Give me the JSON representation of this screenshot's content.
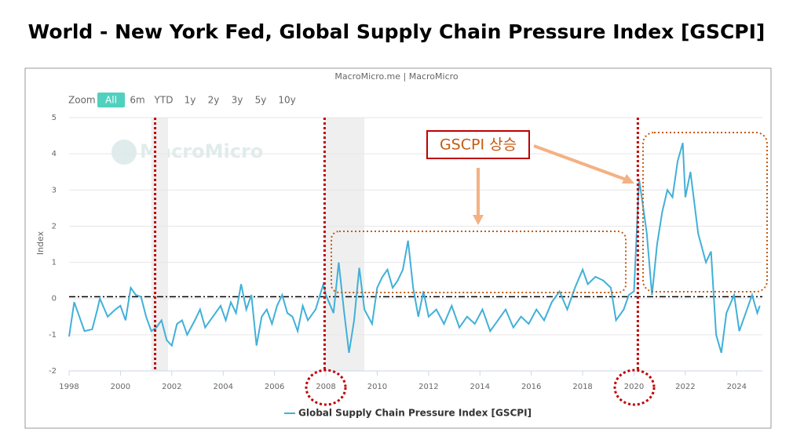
{
  "chart_data": {
    "type": "line",
    "title": "World - New York Fed, Global Supply Chain Pressure Index [GSCPI]",
    "source": "MacroMicro.me | MacroMicro",
    "watermark": "MacroMicro",
    "zoom_label": "Zoom",
    "zoom_buttons": [
      "All",
      "6m",
      "YTD",
      "1y",
      "2y",
      "3y",
      "5y",
      "10y"
    ],
    "y_label": "Index",
    "annotation": "GSCPI 상승",
    "xlim": [
      1998,
      2025
    ],
    "xticks": [
      1998,
      2000,
      2002,
      2004,
      2006,
      2008,
      2010,
      2012,
      2014,
      2016,
      2018,
      2020,
      2022,
      2024
    ],
    "ylim": [
      -2,
      5
    ],
    "yticks": [
      -2,
      -1,
      0,
      1,
      2,
      3,
      4,
      5
    ],
    "grid": true,
    "recessions": [
      [
        2001.2,
        2001.85
      ],
      [
        2007.95,
        2009.5
      ]
    ],
    "event_lines": [
      2001.35,
      2007.95,
      2020.15
    ],
    "reference_line": 0.05,
    "series": [
      {
        "name": "Global Supply Chain Pressure Index [GSCPI]",
        "color": "#41b0d8",
        "x": [
          1998.0,
          1998.2,
          1998.4,
          1998.6,
          1998.9,
          1999.1,
          1999.2,
          1999.5,
          1999.8,
          2000.0,
          2000.2,
          2000.4,
          2000.6,
          2000.8,
          2001.0,
          2001.2,
          2001.4,
          2001.6,
          2001.8,
          2002.0,
          2002.2,
          2002.4,
          2002.6,
          2002.9,
          2003.1,
          2003.3,
          2003.6,
          2003.9,
          2004.1,
          2004.3,
          2004.5,
          2004.7,
          2004.9,
          2005.1,
          2005.3,
          2005.5,
          2005.7,
          2005.9,
          2006.1,
          2006.3,
          2006.5,
          2006.7,
          2006.9,
          2007.1,
          2007.3,
          2007.6,
          2007.9,
          2008.0,
          2008.3,
          2008.5,
          2008.7,
          2008.9,
          2009.1,
          2009.3,
          2009.5,
          2009.8,
          2010.0,
          2010.2,
          2010.4,
          2010.6,
          2010.8,
          2011.0,
          2011.2,
          2011.4,
          2011.6,
          2011.8,
          2012.0,
          2012.3,
          2012.6,
          2012.9,
          2013.2,
          2013.5,
          2013.8,
          2014.1,
          2014.4,
          2014.7,
          2015.0,
          2015.3,
          2015.6,
          2015.9,
          2016.2,
          2016.5,
          2016.8,
          2017.1,
          2017.4,
          2017.7,
          2018.0,
          2018.2,
          2018.5,
          2018.8,
          2019.1,
          2019.3,
          2019.6,
          2019.8,
          2020.0,
          2020.2,
          2020.4,
          2020.5,
          2020.7,
          2020.9,
          2021.1,
          2021.3,
          2021.5,
          2021.7,
          2021.9,
          2022.0,
          2022.2,
          2022.5,
          2022.8,
          2023.0,
          2023.2,
          2023.4,
          2023.6,
          2023.9,
          2024.1,
          2024.4,
          2024.6,
          2024.8,
          2024.9
        ],
        "values": [
          -1.05,
          -0.1,
          -0.5,
          -0.9,
          -0.85,
          -0.3,
          0.0,
          -0.5,
          -0.3,
          -0.2,
          -0.6,
          0.3,
          0.1,
          0.05,
          -0.5,
          -0.9,
          -0.8,
          -0.6,
          -1.15,
          -1.3,
          -0.7,
          -0.6,
          -1.0,
          -0.6,
          -0.3,
          -0.8,
          -0.5,
          -0.2,
          -0.6,
          -0.1,
          -0.4,
          0.4,
          -0.3,
          0.1,
          -1.3,
          -0.5,
          -0.3,
          -0.7,
          -0.2,
          0.1,
          -0.4,
          -0.5,
          -0.9,
          -0.2,
          -0.6,
          -0.3,
          0.4,
          0.1,
          -0.4,
          1.0,
          -0.3,
          -1.5,
          -0.6,
          0.85,
          -0.3,
          -0.7,
          0.3,
          0.6,
          0.8,
          0.3,
          0.5,
          0.8,
          1.6,
          0.3,
          -0.5,
          0.2,
          -0.5,
          -0.3,
          -0.7,
          -0.2,
          -0.8,
          -0.5,
          -0.7,
          -0.3,
          -0.9,
          -0.6,
          -0.3,
          -0.8,
          -0.5,
          -0.7,
          -0.3,
          -0.6,
          -0.1,
          0.2,
          -0.3,
          0.3,
          0.8,
          0.4,
          0.6,
          0.5,
          0.3,
          -0.6,
          -0.3,
          0.1,
          0.2,
          3.3,
          2.3,
          1.8,
          0.1,
          1.5,
          2.4,
          3.0,
          2.8,
          3.8,
          4.3,
          2.8,
          3.5,
          1.8,
          1.0,
          1.3,
          -1.0,
          -1.5,
          -0.4,
          0.1,
          -0.9,
          -0.3,
          0.1,
          -0.4,
          -0.2
        ]
      }
    ]
  }
}
